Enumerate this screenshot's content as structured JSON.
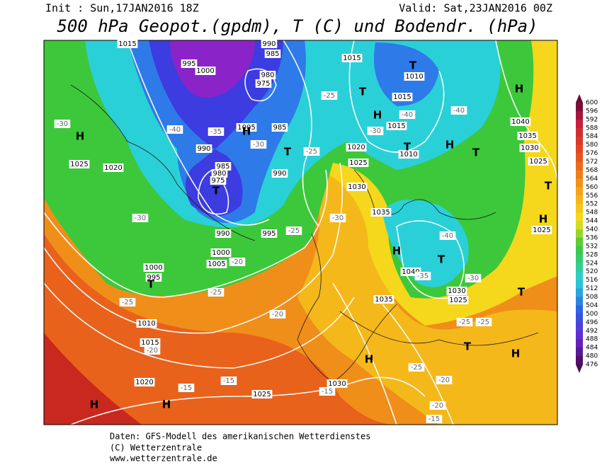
{
  "header": {
    "init": "Init : Sun,17JAN2016 18Z",
    "valid": "Valid: Sat,23JAN2016 00Z",
    "title": "500 hPa Geopot.(gpdm), T (C) und Bodendr. (hPa)"
  },
  "colorbar": [
    600,
    596,
    592,
    588,
    584,
    580,
    576,
    572,
    568,
    564,
    560,
    556,
    552,
    548,
    544,
    540,
    536,
    532,
    528,
    524,
    520,
    516,
    512,
    508,
    504,
    500,
    496,
    492,
    488,
    484,
    480,
    476
  ],
  "pressure_labels": [
    "1015",
    "995",
    "1000",
    "990",
    "985",
    "980",
    "975",
    "1005",
    "985",
    "990",
    "985",
    "980",
    "975",
    "990",
    "1025",
    "1020",
    "990",
    "995",
    "1000",
    "1005",
    "1000",
    "995",
    "1010",
    "1015",
    "1020",
    "1025",
    "1030",
    "1035",
    "1040",
    "1030",
    "1025",
    "1035",
    "1030",
    "1025",
    "1020",
    "1015",
    "1010",
    "1015",
    "1015",
    "1010",
    "1040",
    "1035",
    "1030",
    "1025",
    "1025"
  ],
  "temperature_labels": [
    "-30",
    "-30",
    "-25",
    "-25",
    "-20",
    "-20",
    "-20",
    "-15",
    "-15",
    "-15",
    "-25",
    "-30",
    "-40",
    "-35",
    "-30",
    "-25",
    "-25",
    "-30",
    "-40",
    "-40",
    "-40",
    "-35",
    "-30",
    "-25",
    "-25",
    "-25",
    "-20",
    "-20",
    "-15"
  ],
  "centers": [
    "H",
    "T",
    "T",
    "H",
    "T",
    "T",
    "H",
    "T",
    "T",
    "H",
    "T",
    "H",
    "T",
    "H",
    "H",
    "T",
    "T",
    "T",
    "H",
    "H",
    "H",
    "H"
  ],
  "footer": [
    "Daten: GFS-Modell des amerikanischen Wetterdienstes",
    "(C) Wetterzentrale",
    "www.wetterzentrale.de"
  ]
}
